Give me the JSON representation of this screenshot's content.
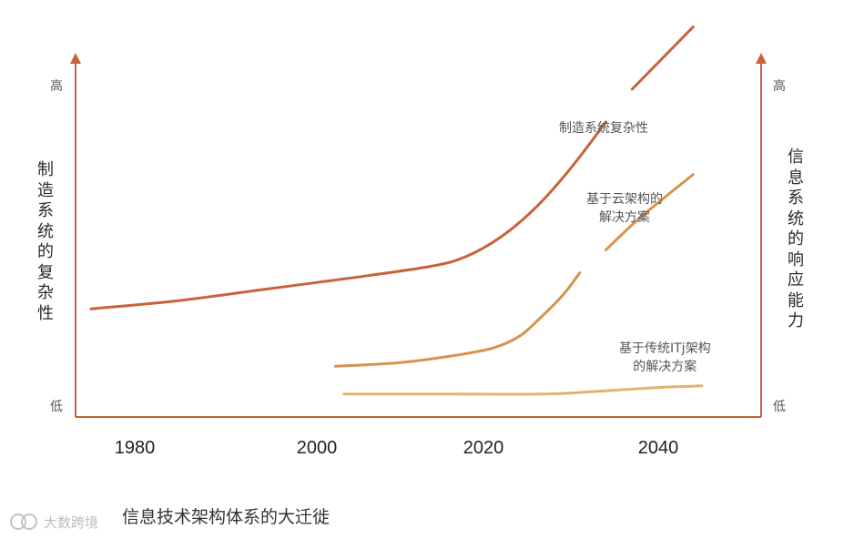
{
  "chart_data": {
    "type": "line",
    "title": "",
    "caption": "信息技术架构体系的大迁徙",
    "x": [
      1980,
      2000,
      2020,
      2040
    ],
    "xlabel": "",
    "xlim": [
      1974,
      2054
    ],
    "tick_labels": [
      "1980",
      "2000",
      "2020",
      "2040"
    ],
    "ylabel_left": "制造系统的复杂性",
    "ylabel_right": "信息系统的响应能力",
    "y_level_labels": {
      "left_high": "高",
      "left_low": "低",
      "right_high": "高",
      "right_low": "低"
    },
    "ylim": [
      0,
      100
    ],
    "series": [
      {
        "name": "制造系统复杂性",
        "color": "#c8623a",
        "points": [
          [
            1975,
            33
          ],
          [
            1985,
            35.5
          ],
          [
            1995,
            39
          ],
          [
            2005,
            42.5
          ],
          [
            2014,
            46
          ],
          [
            2018,
            49
          ],
          [
            2022,
            55
          ],
          [
            2026,
            64
          ],
          [
            2030,
            76
          ],
          [
            2034,
            90
          ],
          [
            2037,
            100
          ],
          [
            2044,
            119
          ]
        ],
        "gap": [
          2034,
          2037
        ]
      },
      {
        "name": "基于云架构的解决方案",
        "color": "#d8924e",
        "points": [
          [
            2003,
            15.5
          ],
          [
            2010,
            16.5
          ],
          [
            2016,
            18.5
          ],
          [
            2021,
            21
          ],
          [
            2024,
            24.5
          ],
          [
            2026,
            29
          ],
          [
            2029,
            37
          ],
          [
            2031,
            44
          ],
          [
            2034,
            51
          ],
          [
            2038,
            61
          ],
          [
            2044,
            74
          ]
        ],
        "gap": [
          2031,
          2034
        ]
      },
      {
        "name": "基于传统ITj架构的解决方案",
        "color": "#e2b36e",
        "points": [
          [
            2004,
            7
          ],
          [
            2016,
            7
          ],
          [
            2027,
            7
          ],
          [
            2034,
            8
          ],
          [
            2040,
            9
          ],
          [
            2045,
            9.5
          ]
        ]
      }
    ],
    "annotations": [
      {
        "text": "制造系统复杂性",
        "series": "制造系统复杂性"
      },
      {
        "lines": [
          "基于云架构的",
          "解决方案"
        ],
        "series": "基于云架构的解决方案"
      },
      {
        "lines": [
          "基于传统ITj架构",
          "的解决方案"
        ],
        "series": "基于传统ITj架构的解决方案"
      }
    ],
    "grid": false,
    "legend": "none",
    "axis_color": "#c8623a"
  },
  "watermark": {
    "text": "大数跨境",
    "logo_text": "(c)"
  }
}
